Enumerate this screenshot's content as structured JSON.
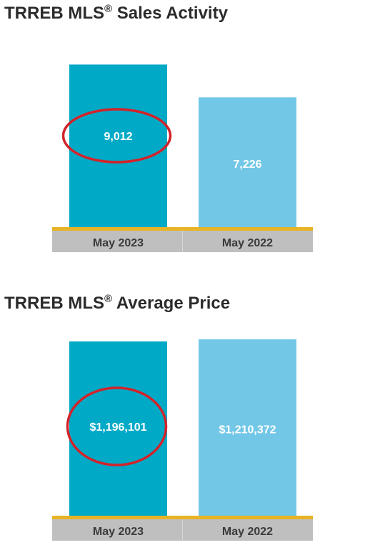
{
  "chart_data": [
    {
      "type": "bar",
      "title": "TRREB MLS",
      "title_superscript": "®",
      "title_suffix": " Sales Activity",
      "categories": [
        "May 2023",
        "May 2022"
      ],
      "values": [
        9012,
        7226
      ],
      "value_labels": [
        "9,012",
        "7,226"
      ],
      "ylim": [
        0,
        10000
      ],
      "highlighted_category": "May 2023",
      "grid": false,
      "colors": {
        "bars": [
          "#00A9C6",
          "#72C7E7"
        ],
        "axis_strip": "#E8B324",
        "category_band": "#BFBFBF",
        "highlight_circle": "#D2232A"
      }
    },
    {
      "type": "bar",
      "title": "TRREB MLS",
      "title_superscript": "®",
      "title_suffix": " Average Price",
      "categories": [
        "May 2023",
        "May 2022"
      ],
      "values": [
        1196101,
        1210372
      ],
      "value_labels": [
        "$1,196,101",
        "$1,210,372"
      ],
      "ylim": [
        0,
        1235000
      ],
      "highlighted_category": "May 2023",
      "grid": false,
      "colors": {
        "bars": [
          "#00A9C6",
          "#72C7E7"
        ],
        "axis_strip": "#E8B324",
        "category_band": "#BFBFBF",
        "highlight_circle": "#D2232A"
      }
    }
  ]
}
